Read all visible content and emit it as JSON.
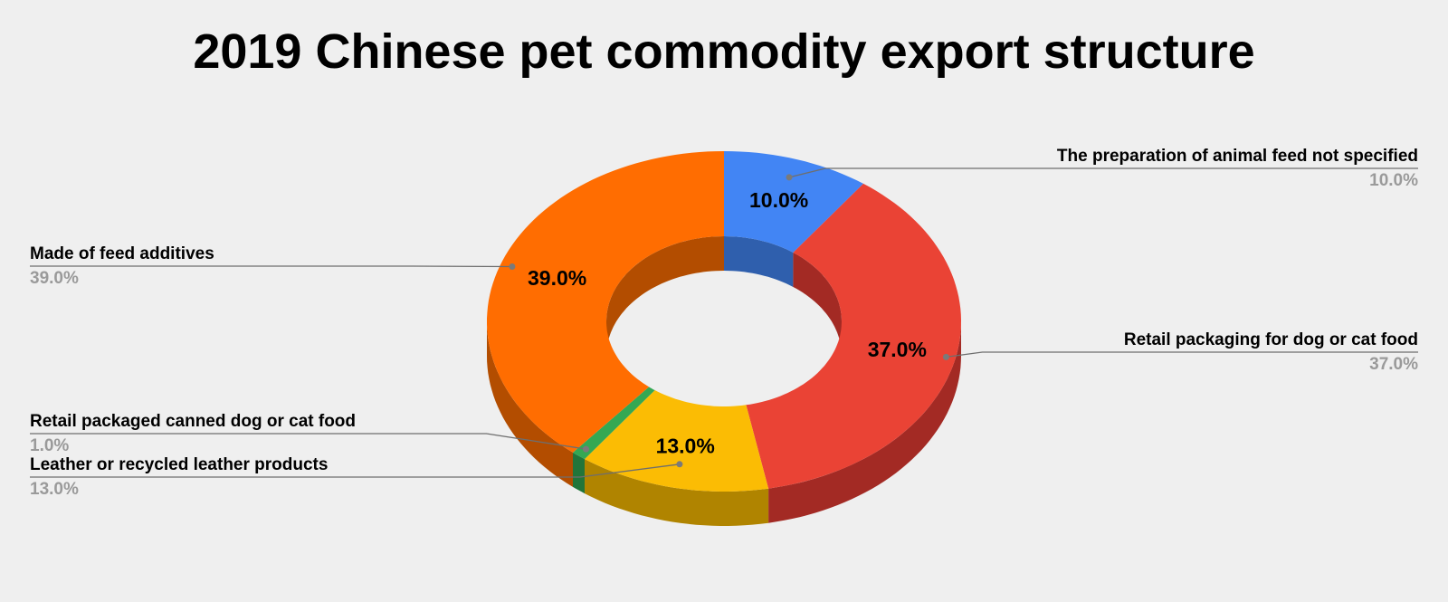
{
  "chart_data": {
    "type": "pie",
    "style": "3d-donut",
    "title": "2019 Chinese pet commodity export structure",
    "slices": [
      {
        "name": "The preparation of animal feed not specified",
        "value": 10.0,
        "label": "10.0%",
        "color": "#4285f4",
        "side_color": "#2f5fad"
      },
      {
        "name": "Retail packaging for dog or cat food",
        "value": 37.0,
        "label": "37.0%",
        "color": "#ea4335",
        "side_color": "#a32a24"
      },
      {
        "name": "Leather or recycled leather products",
        "value": 13.0,
        "label": "13.0%",
        "color": "#fbbc04",
        "side_color": "#b08400"
      },
      {
        "name": "Retail packaged canned dog or cat food",
        "value": 1.0,
        "label": "1.0%",
        "color": "#34a853",
        "side_color": "#21753a"
      },
      {
        "name": "Made of feed additives",
        "value": 39.0,
        "label": "39.0%",
        "color": "#ff6d01",
        "side_color": "#b34d00"
      }
    ],
    "legend": "callout labels on both sides"
  }
}
